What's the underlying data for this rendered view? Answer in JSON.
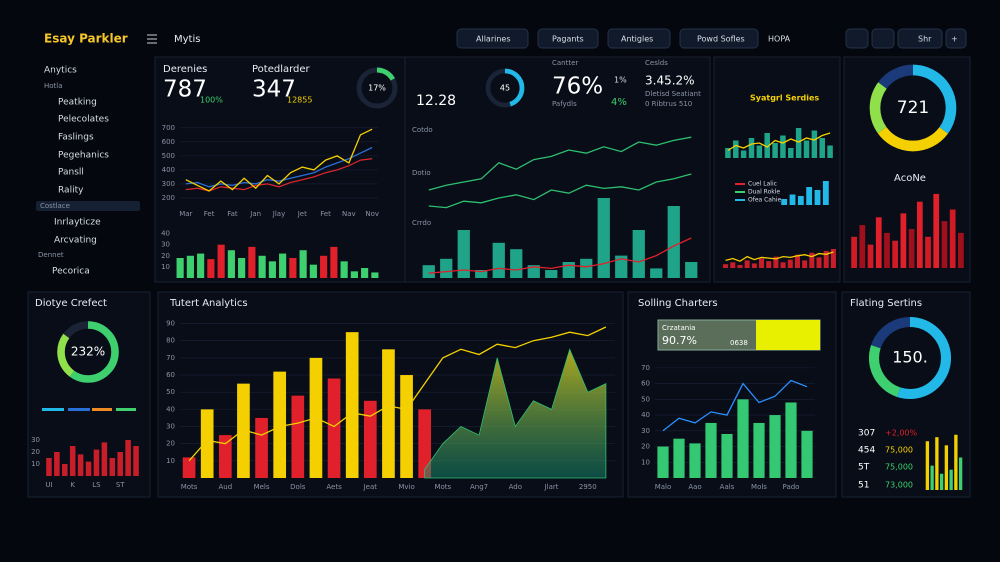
{
  "header": {
    "brand": "Esay Parkler",
    "page": "Mytis",
    "tabs": [
      "Allarines",
      "Pagants",
      "Antigles",
      "Powd Sofles",
      "HOPA"
    ],
    "share": "Shr"
  },
  "sidebar": {
    "title": "Anytics",
    "sub": "Hotla",
    "items": [
      "Peatking",
      "Pelecolates",
      "Faslings",
      "Pegehanics",
      "Pansll",
      "Rality"
    ],
    "section1": "Costlace",
    "items2": [
      "Inrlayticze",
      "Arcvating"
    ],
    "section2": "Dennet",
    "items3": [
      "Pecorica"
    ]
  },
  "kpis": [
    {
      "label": "Derenies",
      "value": "787",
      "delta": "100%"
    },
    {
      "label": "Potedlarder",
      "value": "347",
      "delta": "12855"
    }
  ],
  "stats": {
    "mid_value": "12.28",
    "canter": "Cantter",
    "pct": "76%",
    "pct_sub": "Pafydls",
    "small1": "1%",
    "small2": "4%",
    "ceslds": "Ceslds",
    "ratio": "3.45.2%",
    "note1": "Dletisd Seatiant",
    "note2": "0 Ribtrus 510"
  },
  "panels": {
    "series_title": "Syatgrl Serdies",
    "acone": "AcoNe",
    "diotye": "Diotye Crefect",
    "tutert": "Tutert Analytics",
    "solling": "Solling Charters",
    "flating": "Flating Sertins",
    "crz_label": "Crzatania",
    "crz_value": "90.7%",
    "crz_code": "0638"
  },
  "table": [
    [
      "307",
      "+2,00%"
    ],
    [
      "454",
      "75,000"
    ],
    [
      "5T",
      "75,000"
    ],
    [
      "51",
      "73,000"
    ]
  ],
  "charts": [
    {
      "type": "line",
      "categories": [
        "Mar",
        null,
        "Fet",
        null,
        "Fat",
        null,
        "Jan",
        null,
        "Jlay",
        null,
        "Jet",
        null,
        "Fet",
        null,
        "Nav",
        null,
        "Nov"
      ],
      "ylim": [
        150,
        720
      ],
      "yticks": [
        200,
        300,
        400,
        500,
        600,
        700
      ],
      "grid": true,
      "series": [
        {
          "color": "#2a6fd8",
          "values": [
            300,
            310,
            280,
            300,
            290,
            310,
            300,
            330,
            320,
            340,
            360,
            380,
            420,
            450,
            480,
            520,
            560
          ]
        },
        {
          "color": "#d8262c",
          "values": [
            260,
            270,
            250,
            280,
            270,
            260,
            290,
            300,
            280,
            310,
            330,
            350,
            380,
            400,
            430,
            470,
            480
          ]
        },
        {
          "color": "#f5d000",
          "values": [
            330,
            290,
            250,
            320,
            260,
            340,
            270,
            360,
            300,
            380,
            420,
            400,
            470,
            500,
            450,
            650,
            690
          ]
        }
      ]
    },
    {
      "type": "bar",
      "ylim": [
        0,
        45
      ],
      "yticks": [
        10,
        20,
        30,
        40
      ],
      "series": [
        {
          "color": "#3ecf6e",
          "colors": [
            "#3ecf6e",
            "#3ecf6e",
            "#3ecf6e",
            "#e0202a",
            "#e0202a",
            "#3ecf6e",
            "#3ecf6e",
            "#e0202a",
            "#3ecf6e",
            "#3ecf6e",
            "#3ecf6e",
            "#e0202a",
            "#3ecf6e",
            "#3ecf6e",
            "#e0202a",
            "#e0202a",
            "#3ecf6e",
            "#3ecf6e",
            "#3ecf6e",
            "#3ecf6e"
          ],
          "values": [
            18,
            20,
            22,
            17,
            30,
            25,
            18,
            28,
            20,
            15,
            22,
            18,
            25,
            12,
            20,
            28,
            15,
            6,
            9,
            5
          ]
        }
      ]
    },
    {
      "type": "combo",
      "ylim": [
        0,
        100
      ],
      "side_labels": [
        "Cotdo",
        "Dotio",
        "Crrdo"
      ],
      "series": [
        {
          "kind": "bar",
          "color": "#1fa48a",
          "values": [
            8,
            12,
            30,
            5,
            22,
            18,
            8,
            5,
            10,
            12,
            50,
            14,
            30,
            6,
            45,
            10
          ]
        },
        {
          "kind": "line",
          "color": "#2fbf71",
          "values": [
            55,
            58,
            60,
            62,
            72,
            68,
            74,
            76,
            80,
            78,
            82,
            79,
            85,
            83,
            86,
            88
          ]
        },
        {
          "kind": "line",
          "color": "#2fbf71",
          "values": [
            45,
            44,
            48,
            47,
            50,
            52,
            49,
            55,
            53,
            58,
            56,
            57,
            55,
            60,
            62,
            65
          ]
        },
        {
          "kind": "line",
          "color": "#e0202a",
          "values": [
            3,
            4,
            5,
            4,
            6,
            5,
            7,
            6,
            8,
            7,
            9,
            12,
            10,
            14,
            20,
            25
          ]
        }
      ]
    },
    {
      "type": "combo",
      "ylim": [
        0,
        100
      ],
      "series": [
        {
          "kind": "bar",
          "color": "#1fa48a",
          "values": [
            20,
            35,
            15,
            40,
            25,
            50,
            30,
            45,
            20,
            60,
            35,
            55,
            40,
            25
          ]
        },
        {
          "kind": "line",
          "color": "#f5d000",
          "values": [
            15,
            25,
            20,
            28,
            30,
            22,
            35,
            30,
            38,
            32,
            40,
            36,
            45,
            50
          ]
        }
      ]
    },
    {
      "type": "bar",
      "ylim": [
        0,
        100
      ],
      "legend_labels": [
        "Cuel Lalic",
        "Dual Rokle",
        "Ofea Cahie"
      ],
      "series": [
        {
          "color": "#22b8e8",
          "values": [
            20,
            35,
            30,
            60,
            50,
            80
          ]
        }
      ]
    },
    {
      "type": "combo",
      "ylim": [
        0,
        100
      ],
      "series": [
        {
          "kind": "bar",
          "color": "#c81e2a",
          "values": [
            10,
            15,
            8,
            20,
            12,
            25,
            18,
            30,
            15,
            22,
            35,
            20,
            40,
            28,
            45,
            50
          ]
        },
        {
          "kind": "line",
          "color": "#f5d000",
          "values": [
            20,
            25,
            18,
            30,
            22,
            28,
            26,
            24,
            30,
            28,
            32,
            35,
            30,
            38,
            36,
            42
          ]
        }
      ]
    },
    {
      "type": "bar",
      "ylim": [
        0,
        100
      ],
      "series": [
        {
          "color": "#d01a26",
          "colors": [
            "#d01a26",
            "#a0101c",
            "#d01a26",
            "#e0202a",
            "#a0101c",
            "#d01a26",
            "#e0202a",
            "#a0101c",
            "#e0202a",
            "#d01a26",
            "#e0202a",
            "#a0101c",
            "#d01a26",
            "#a0101c"
          ],
          "values": [
            40,
            55,
            30,
            65,
            45,
            35,
            70,
            50,
            85,
            40,
            95,
            60,
            75,
            45
          ]
        }
      ]
    },
    {
      "type": "combo",
      "categories": [
        "Mots",
        null,
        "Aud",
        null,
        "Mels",
        null,
        "Dols",
        null,
        "Aets",
        null,
        "Jeat",
        null,
        "Mvio",
        null,
        "Mots",
        null,
        "Ang7",
        null,
        "Ado",
        null,
        "Jlart",
        null,
        "2950",
        null
      ],
      "ylim": [
        0,
        95
      ],
      "yticks": [
        10,
        20,
        30,
        40,
        50,
        60,
        70,
        80,
        90
      ],
      "grid": true,
      "series": [
        {
          "kind": "bar",
          "color": "#f5d000",
          "colors": [
            "#e0202a",
            "#f5d000",
            "#e0202a",
            "#f5d000",
            "#e0202a",
            "#f5d000",
            "#e0202a",
            "#f5d000",
            "#e0202a",
            "#f5d000",
            "#e0202a",
            "#f5d000",
            "#f5d000",
            "#e0202a",
            null,
            null,
            null,
            null,
            null,
            null,
            null,
            null,
            null,
            null
          ],
          "values": [
            12,
            40,
            25,
            55,
            35,
            62,
            48,
            70,
            58,
            85,
            45,
            75,
            60,
            40,
            null,
            null,
            null,
            null,
            null,
            null,
            null,
            null,
            null,
            null
          ]
        },
        {
          "kind": "area",
          "color": "#2fbf71",
          "values": [
            null,
            null,
            null,
            null,
            null,
            null,
            null,
            null,
            null,
            null,
            null,
            null,
            null,
            5,
            20,
            30,
            25,
            70,
            30,
            45,
            40,
            75,
            50,
            55
          ]
        },
        {
          "kind": "line",
          "color": "#f5d000",
          "values": [
            10,
            22,
            20,
            28,
            25,
            30,
            32,
            35,
            30,
            38,
            36,
            42,
            40,
            55,
            70,
            75,
            72,
            78,
            76,
            80,
            82,
            85,
            83,
            88
          ]
        }
      ]
    },
    {
      "type": "combo",
      "categories": [
        "Malo",
        null,
        "Aao",
        null,
        "Aals",
        null,
        "Mols",
        null,
        "Pado",
        null
      ],
      "ylim": [
        0,
        75
      ],
      "yticks": [
        10,
        20,
        30,
        40,
        50,
        60,
        70
      ],
      "grid": true,
      "series": [
        {
          "kind": "bar",
          "color": "#35c873",
          "values": [
            20,
            25,
            22,
            35,
            28,
            50,
            35,
            40,
            48,
            30
          ]
        },
        {
          "kind": "line",
          "color": "#2a8fff",
          "values": [
            30,
            38,
            35,
            42,
            40,
            60,
            48,
            52,
            62,
            58
          ]
        }
      ]
    },
    {
      "type": "bar",
      "categories": [
        "UI",
        null,
        null,
        "K",
        null,
        null,
        "LS",
        null,
        null,
        "ST",
        null,
        null
      ],
      "ylim": [
        0,
        40
      ],
      "yticks": [
        10,
        20,
        30
      ],
      "series": [
        {
          "color": "#c81e2a",
          "values": [
            15,
            20,
            10,
            25,
            18,
            12,
            22,
            28,
            15,
            20,
            30,
            25
          ]
        }
      ]
    },
    {
      "type": "bar",
      "ylim": [
        0,
        80
      ],
      "series": [
        {
          "color": "#f5d000",
          "colors": [
            "#f5d000",
            "#3ecf6e",
            "#f5d000",
            "#3ecf6e",
            "#f5d000",
            "#3ecf6e",
            "#f5d000",
            "#3ecf6e"
          ],
          "values": [
            60,
            30,
            65,
            20,
            55,
            25,
            68,
            40
          ]
        }
      ]
    },
    {
      "type": "donut",
      "ylim": [
        0,
        100
      ],
      "values": [
        17
      ],
      "colors": [
        "#3ecf6e"
      ],
      "center": "17%"
    },
    {
      "type": "donut",
      "ylim": [
        0,
        100
      ],
      "values": [
        45
      ],
      "colors": [
        "#22b8e8"
      ],
      "center": "45"
    },
    {
      "type": "donut",
      "ylim": [
        0,
        100
      ],
      "values": [
        35,
        30,
        20,
        15
      ],
      "colors": [
        "#22b8e8",
        "#f5d000",
        "#8fe04a",
        "#1a3a7a"
      ],
      "center": "721"
    },
    {
      "type": "donut",
      "ylim": [
        0,
        100
      ],
      "values": [
        60,
        25
      ],
      "colors": [
        "#3ecf6e",
        "#8fe04a"
      ],
      "center": "232%"
    },
    {
      "type": "donut",
      "ylim": [
        0,
        100
      ],
      "values": [
        55,
        25,
        20
      ],
      "colors": [
        "#22b8e8",
        "#3ecf6e",
        "#1a3a7a"
      ],
      "center": "150."
    }
  ]
}
